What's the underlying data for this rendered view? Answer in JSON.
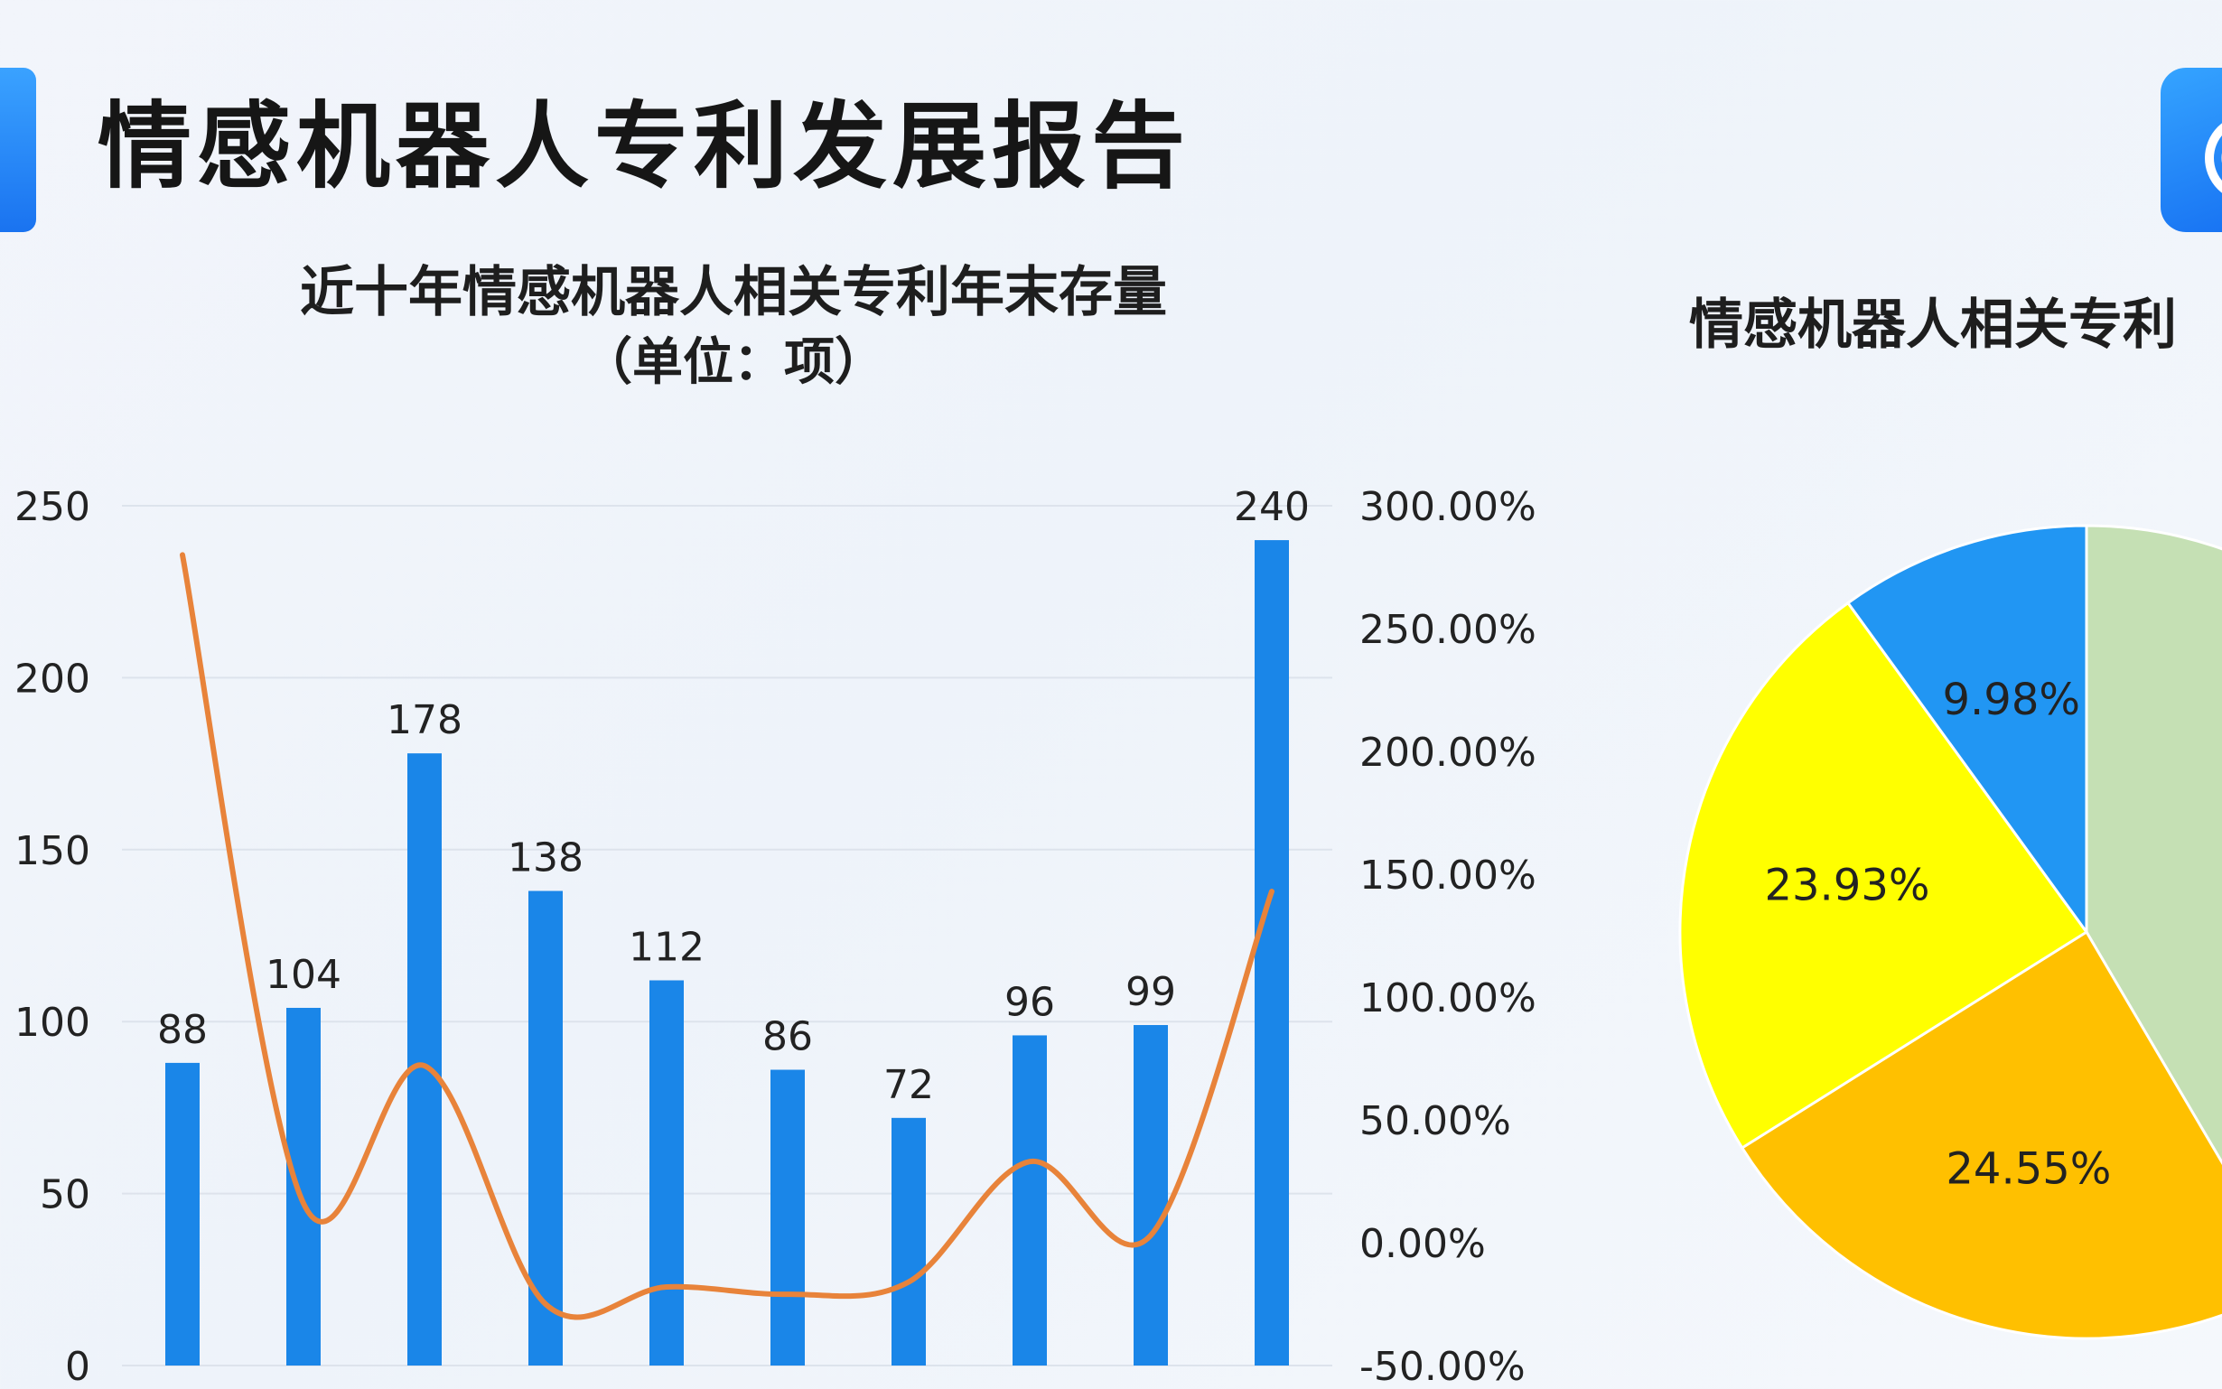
{
  "header": {
    "title": "情感机器人专利发展报告",
    "accent_color": "#1a73f0",
    "logo_icon": "logo-icon"
  },
  "chart_data": [
    {
      "type": "bar",
      "title": "近十年情感机器人相关专利年末存量",
      "subtitle": "（单位：项）",
      "values": [
        88,
        104,
        178,
        138,
        112,
        86,
        72,
        96,
        99,
        240
      ],
      "y_ticks": [
        "250",
        "200",
        "150",
        "100",
        "50",
        "0"
      ],
      "ylim": [
        0,
        250
      ],
      "bar_color": "#1a86e8",
      "secondary": {
        "type": "line",
        "values": [
          280,
          16,
          72,
          -25,
          -18,
          -21,
          -16,
          33,
          3,
          143
        ],
        "ylim": [
          -50,
          300
        ],
        "y_ticks": [
          "300.00%",
          "250.00%",
          "200.00%",
          "150.00%",
          "100.00%",
          "50.00%",
          "0.00%",
          "-50.00%"
        ],
        "color": "#e8833a"
      },
      "grid": true
    },
    {
      "type": "pie",
      "title": "情感机器人相关专利",
      "slices": [
        {
          "label": "",
          "value": 41.54,
          "color": "#c5e0b4"
        },
        {
          "label": "24.55%",
          "value": 24.55,
          "color": "#ffc000"
        },
        {
          "label": "23.93%",
          "value": 23.93,
          "color": "#ffff00"
        },
        {
          "label": "9.98%",
          "value": 9.98,
          "color": "#2196f3"
        }
      ]
    }
  ]
}
